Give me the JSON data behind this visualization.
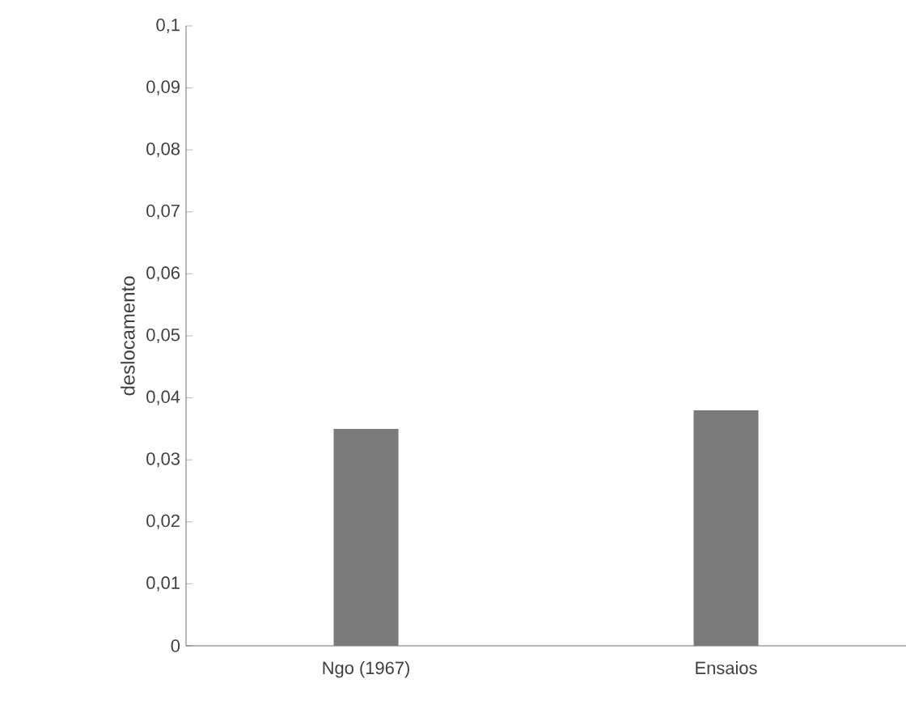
{
  "chart_data": {
    "type": "bar",
    "ylabel": "deslocamento",
    "categories": [
      "Ngo (1967)",
      "Ensaios"
    ],
    "values": [
      0.035,
      0.038
    ],
    "color": "#7a7a7a",
    "ylim": [
      0,
      0.1
    ],
    "yticks": [
      0,
      {
        "value": 0.01,
        "label": "0,01"
      },
      {
        "value": 0.02,
        "label": "0,02"
      },
      {
        "value": 0.03,
        "label": "0,03"
      },
      {
        "value": 0.04,
        "label": "0,04"
      },
      {
        "value": 0.05,
        "label": "0,05"
      },
      {
        "value": 0.06,
        "label": "0,06"
      },
      {
        "value": 0.07,
        "label": "0,07"
      },
      {
        "value": 0.08,
        "label": "0,08"
      },
      {
        "value": 0.09,
        "label": "0,09"
      },
      {
        "value": 0.1,
        "label": "0,1"
      }
    ],
    "grid": false
  }
}
